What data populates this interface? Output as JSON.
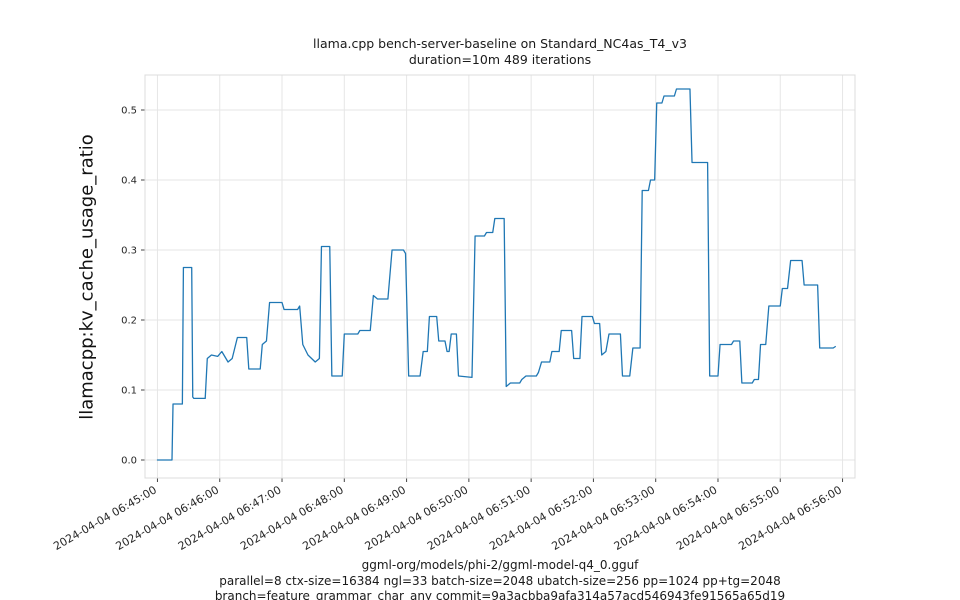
{
  "header": {
    "title": "llama.cpp bench-server-baseline on Standard_NC4as_T4_v3",
    "subtitle": "duration=10m 489 iterations"
  },
  "footer": {
    "lines": [
      "ggml-org/models/phi-2/ggml-model-q4_0.gguf",
      "parallel=8 ctx-size=16384 ngl=33 batch-size=2048 ubatch-size=256 pp=1024 pp+tg=2048",
      "branch=feature_grammar_char_any commit=9a3acbba9afa314a57acd546943fe91565a65d19"
    ]
  },
  "chart_data": {
    "type": "line",
    "title": "llama.cpp bench-server-baseline on Standard_NC4as_T4_v3",
    "subtitle": "duration=10m 489 iterations",
    "xlabel": "",
    "ylabel": "llamacpp:kv_cache_usage_ratio",
    "legend_position": "none",
    "grid": true,
    "grid_color": "#e6e6e6",
    "line_color": "#1f77b4",
    "tick_color": "#262626",
    "x_unit": "seconds since first x tick",
    "x_range": [
      -12,
      672
    ],
    "y_range": [
      -0.0257,
      0.55
    ],
    "y_ticks": [
      0.0,
      0.1,
      0.2,
      0.3,
      0.4,
      0.5
    ],
    "x_ticks": [
      {
        "t": 0,
        "label": "2024-04-04 06:45:00"
      },
      {
        "t": 60,
        "label": "2024-04-04 06:46:00"
      },
      {
        "t": 120,
        "label": "2024-04-04 06:47:00"
      },
      {
        "t": 180,
        "label": "2024-04-04 06:48:00"
      },
      {
        "t": 240,
        "label": "2024-04-04 06:49:00"
      },
      {
        "t": 300,
        "label": "2024-04-04 06:50:00"
      },
      {
        "t": 360,
        "label": "2024-04-04 06:51:00"
      },
      {
        "t": 420,
        "label": "2024-04-04 06:52:00"
      },
      {
        "t": 480,
        "label": "2024-04-04 06:53:00"
      },
      {
        "t": 540,
        "label": "2024-04-04 06:54:00"
      },
      {
        "t": 600,
        "label": "2024-04-04 06:55:00"
      },
      {
        "t": 660,
        "label": "2024-04-04 06:56:00"
      }
    ],
    "series": [
      {
        "name": "llamacpp:kv_cache_usage_ratio",
        "color": "#1f77b4",
        "points": [
          [
            0,
            0.0
          ],
          [
            14,
            0.0
          ],
          [
            15,
            0.08
          ],
          [
            24,
            0.08
          ],
          [
            25,
            0.275
          ],
          [
            33,
            0.275
          ],
          [
            34,
            0.09
          ],
          [
            35,
            0.088
          ],
          [
            46,
            0.088
          ],
          [
            48,
            0.145
          ],
          [
            52,
            0.15
          ],
          [
            58,
            0.148
          ],
          [
            62,
            0.155
          ],
          [
            68,
            0.14
          ],
          [
            72,
            0.145
          ],
          [
            77,
            0.175
          ],
          [
            86,
            0.175
          ],
          [
            88,
            0.13
          ],
          [
            99,
            0.13
          ],
          [
            101,
            0.165
          ],
          [
            105,
            0.17
          ],
          [
            108,
            0.225
          ],
          [
            120,
            0.225
          ],
          [
            122,
            0.215
          ],
          [
            135,
            0.215
          ],
          [
            137,
            0.22
          ],
          [
            140,
            0.165
          ],
          [
            145,
            0.15
          ],
          [
            152,
            0.14
          ],
          [
            156,
            0.145
          ],
          [
            158,
            0.305
          ],
          [
            166,
            0.305
          ],
          [
            168,
            0.12
          ],
          [
            178,
            0.12
          ],
          [
            180,
            0.18
          ],
          [
            193,
            0.18
          ],
          [
            195,
            0.185
          ],
          [
            205,
            0.185
          ],
          [
            208,
            0.235
          ],
          [
            212,
            0.23
          ],
          [
            222,
            0.23
          ],
          [
            226,
            0.3
          ],
          [
            237,
            0.3
          ],
          [
            239,
            0.295
          ],
          [
            242,
            0.12
          ],
          [
            253,
            0.12
          ],
          [
            256,
            0.155
          ],
          [
            260,
            0.155
          ],
          [
            262,
            0.205
          ],
          [
            269,
            0.205
          ],
          [
            271,
            0.17
          ],
          [
            277,
            0.17
          ],
          [
            279,
            0.155
          ],
          [
            281,
            0.155
          ],
          [
            283,
            0.18
          ],
          [
            288,
            0.18
          ],
          [
            290,
            0.12
          ],
          [
            303,
            0.118
          ],
          [
            306,
            0.32
          ],
          [
            315,
            0.32
          ],
          [
            317,
            0.325
          ],
          [
            323,
            0.325
          ],
          [
            325,
            0.345
          ],
          [
            334,
            0.345
          ],
          [
            336,
            0.105
          ],
          [
            340,
            0.11
          ],
          [
            349,
            0.11
          ],
          [
            351,
            0.115
          ],
          [
            355,
            0.12
          ],
          [
            365,
            0.12
          ],
          [
            367,
            0.125
          ],
          [
            370,
            0.14
          ],
          [
            378,
            0.14
          ],
          [
            380,
            0.155
          ],
          [
            387,
            0.155
          ],
          [
            389,
            0.185
          ],
          [
            399,
            0.185
          ],
          [
            401,
            0.145
          ],
          [
            407,
            0.145
          ],
          [
            409,
            0.205
          ],
          [
            419,
            0.205
          ],
          [
            421,
            0.195
          ],
          [
            426,
            0.195
          ],
          [
            428,
            0.15
          ],
          [
            432,
            0.155
          ],
          [
            435,
            0.18
          ],
          [
            446,
            0.18
          ],
          [
            448,
            0.12
          ],
          [
            455,
            0.12
          ],
          [
            458,
            0.16
          ],
          [
            465,
            0.16
          ],
          [
            467,
            0.385
          ],
          [
            473,
            0.385
          ],
          [
            475,
            0.4
          ],
          [
            479,
            0.4
          ],
          [
            481,
            0.51
          ],
          [
            486,
            0.51
          ],
          [
            488,
            0.52
          ],
          [
            498,
            0.52
          ],
          [
            500,
            0.53
          ],
          [
            513,
            0.53
          ],
          [
            515,
            0.425
          ],
          [
            530,
            0.425
          ],
          [
            532,
            0.12
          ],
          [
            540,
            0.12
          ],
          [
            542,
            0.165
          ],
          [
            553,
            0.165
          ],
          [
            555,
            0.17
          ],
          [
            561,
            0.17
          ],
          [
            563,
            0.11
          ],
          [
            573,
            0.11
          ],
          [
            575,
            0.115
          ],
          [
            579,
            0.115
          ],
          [
            581,
            0.165
          ],
          [
            586,
            0.165
          ],
          [
            589,
            0.22
          ],
          [
            600,
            0.22
          ],
          [
            602,
            0.245
          ],
          [
            607,
            0.245
          ],
          [
            610,
            0.285
          ],
          [
            621,
            0.285
          ],
          [
            623,
            0.25
          ],
          [
            636,
            0.25
          ],
          [
            638,
            0.16
          ],
          [
            651,
            0.16
          ],
          [
            653,
            0.162
          ]
        ]
      }
    ]
  }
}
